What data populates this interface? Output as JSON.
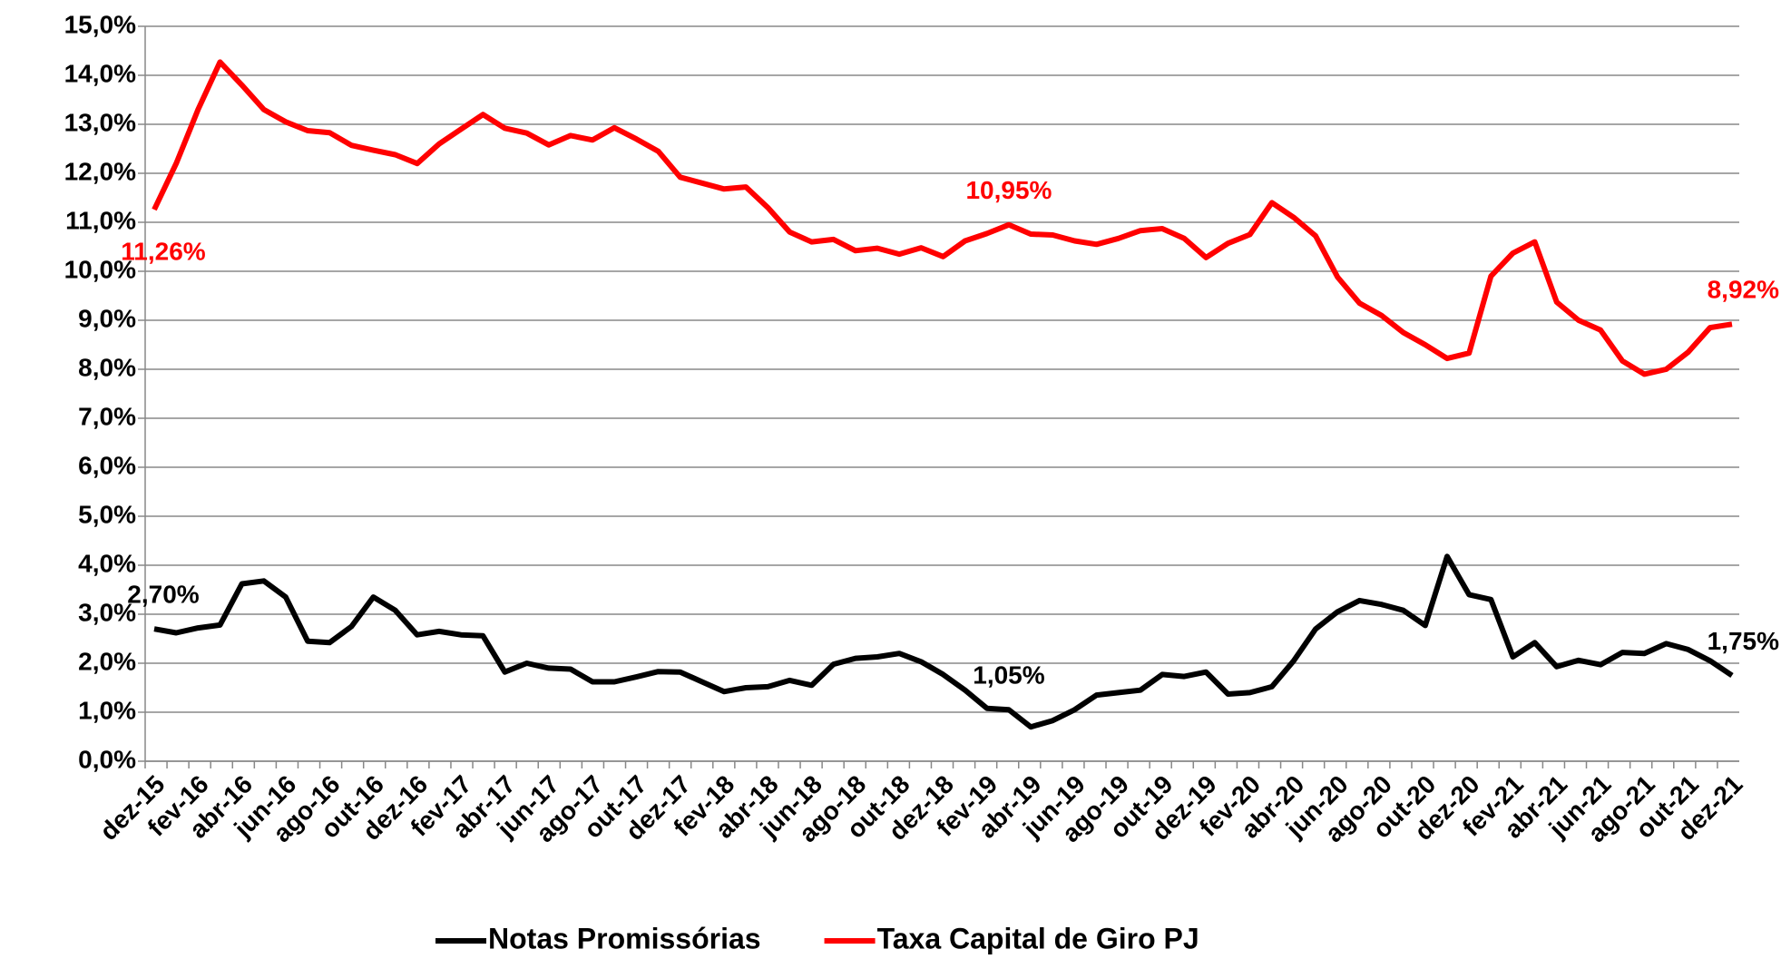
{
  "chart_data": {
    "type": "line",
    "categories": [
      "dez-15",
      null,
      "fev-16",
      null,
      "abr-16",
      null,
      "jun-16",
      null,
      "ago-16",
      null,
      "out-16",
      null,
      "dez-16",
      null,
      "fev-17",
      null,
      "abr-17",
      null,
      "jun-17",
      null,
      "ago-17",
      null,
      "out-17",
      null,
      "dez-17",
      null,
      "fev-18",
      null,
      "abr-18",
      null,
      "jun-18",
      null,
      "ago-18",
      null,
      "out-18",
      null,
      "dez-18",
      null,
      "fev-19",
      null,
      "abr-19",
      null,
      "jun-19",
      null,
      "ago-19",
      null,
      "out-19",
      null,
      "dez-19",
      null,
      "fev-20",
      null,
      "abr-20",
      null,
      "jun-20",
      null,
      "ago-20",
      null,
      "out-20",
      null,
      "dez-20",
      null,
      "fev-21",
      null,
      "abr-21",
      null,
      "jun-21",
      null,
      "ago-21",
      null,
      "out-21",
      null,
      "dez-21"
    ],
    "series": [
      {
        "name": "Notas Promissórias",
        "color": "#000000",
        "values": [
          2.7,
          2.62,
          2.72,
          2.78,
          3.62,
          3.68,
          3.35,
          2.45,
          2.42,
          2.75,
          3.35,
          3.08,
          2.58,
          2.65,
          2.58,
          2.56,
          1.82,
          2.0,
          1.9,
          1.88,
          1.62,
          1.62,
          1.72,
          1.83,
          1.82,
          1.62,
          1.42,
          1.5,
          1.52,
          1.65,
          1.55,
          1.98,
          2.1,
          2.13,
          2.2,
          2.03,
          1.77,
          1.45,
          1.08,
          1.05,
          0.7,
          0.83,
          1.05,
          1.35,
          1.4,
          1.45,
          1.77,
          1.73,
          1.82,
          1.37,
          1.4,
          1.52,
          2.05,
          2.7,
          3.05,
          3.28,
          3.2,
          3.08,
          2.77,
          4.18,
          3.4,
          3.3,
          2.13,
          2.42,
          1.93,
          2.06,
          1.97,
          2.22,
          2.2,
          2.4,
          2.28,
          2.05,
          1.75
        ],
        "value_labels": [
          "2,70%",
          null,
          null,
          null,
          null,
          null,
          null,
          null,
          null,
          null,
          null,
          null,
          null,
          null,
          null,
          null,
          null,
          null,
          null,
          null,
          null,
          null,
          null,
          null,
          null,
          null,
          null,
          null,
          null,
          null,
          null,
          null,
          null,
          null,
          null,
          null,
          null,
          null,
          null,
          "1,05%",
          null,
          null,
          null,
          null,
          null,
          null,
          null,
          null,
          null,
          null,
          null,
          null,
          null,
          null,
          null,
          null,
          null,
          null,
          null,
          null,
          null,
          null,
          null,
          null,
          null,
          null,
          null,
          null,
          null,
          null,
          null,
          null,
          "1,75%"
        ]
      },
      {
        "name": "Taxa Capital de Giro PJ",
        "color": "#ff0000",
        "values": [
          11.26,
          12.2,
          13.3,
          14.27,
          13.8,
          13.3,
          13.05,
          12.87,
          12.83,
          12.57,
          12.47,
          12.38,
          12.2,
          12.6,
          12.9,
          13.2,
          12.92,
          12.82,
          12.58,
          12.77,
          12.68,
          12.93,
          12.7,
          12.45,
          11.92,
          11.8,
          11.68,
          11.72,
          11.3,
          10.8,
          10.6,
          10.65,
          10.42,
          10.47,
          10.35,
          10.48,
          10.3,
          10.62,
          10.77,
          10.95,
          10.76,
          10.74,
          10.62,
          10.55,
          10.67,
          10.83,
          10.87,
          10.67,
          10.28,
          10.57,
          10.75,
          11.4,
          11.1,
          10.72,
          9.88,
          9.35,
          9.1,
          8.75,
          8.5,
          8.22,
          8.33,
          9.9,
          10.37,
          10.6,
          9.37,
          9.0,
          8.8,
          8.17,
          7.9,
          8.0,
          8.35,
          8.85,
          8.92
        ],
        "value_labels": [
          "11,26%",
          null,
          null,
          null,
          null,
          null,
          null,
          null,
          null,
          null,
          null,
          null,
          null,
          null,
          null,
          null,
          null,
          null,
          null,
          null,
          null,
          null,
          null,
          null,
          null,
          null,
          null,
          null,
          null,
          null,
          null,
          null,
          null,
          null,
          null,
          null,
          null,
          null,
          null,
          "10,95%",
          null,
          null,
          null,
          null,
          null,
          null,
          null,
          null,
          null,
          null,
          null,
          null,
          null,
          null,
          null,
          null,
          null,
          null,
          null,
          null,
          null,
          null,
          null,
          null,
          null,
          null,
          null,
          null,
          null,
          null,
          null,
          null,
          "8,92%"
        ]
      }
    ],
    "ylim": [
      0,
      15
    ],
    "yticks": [
      {
        "value": 0,
        "label": "0,0%"
      },
      {
        "value": 1,
        "label": "1,0%"
      },
      {
        "value": 2,
        "label": "2,0%"
      },
      {
        "value": 3,
        "label": "3,0%"
      },
      {
        "value": 4,
        "label": "4,0%"
      },
      {
        "value": 5,
        "label": "5,0%"
      },
      {
        "value": 6,
        "label": "6,0%"
      },
      {
        "value": 7,
        "label": "7,0%"
      },
      {
        "value": 8,
        "label": "8,0%"
      },
      {
        "value": 9,
        "label": "9,0%"
      },
      {
        "value": 10,
        "label": "10,0%"
      },
      {
        "value": 11,
        "label": "11,0%"
      },
      {
        "value": 12,
        "label": "12,0%"
      },
      {
        "value": 13,
        "label": "13,0%"
      },
      {
        "value": 14,
        "label": "14,0%"
      },
      {
        "value": 15,
        "label": "15,0%"
      }
    ],
    "grid": true,
    "legend": "bottom"
  }
}
